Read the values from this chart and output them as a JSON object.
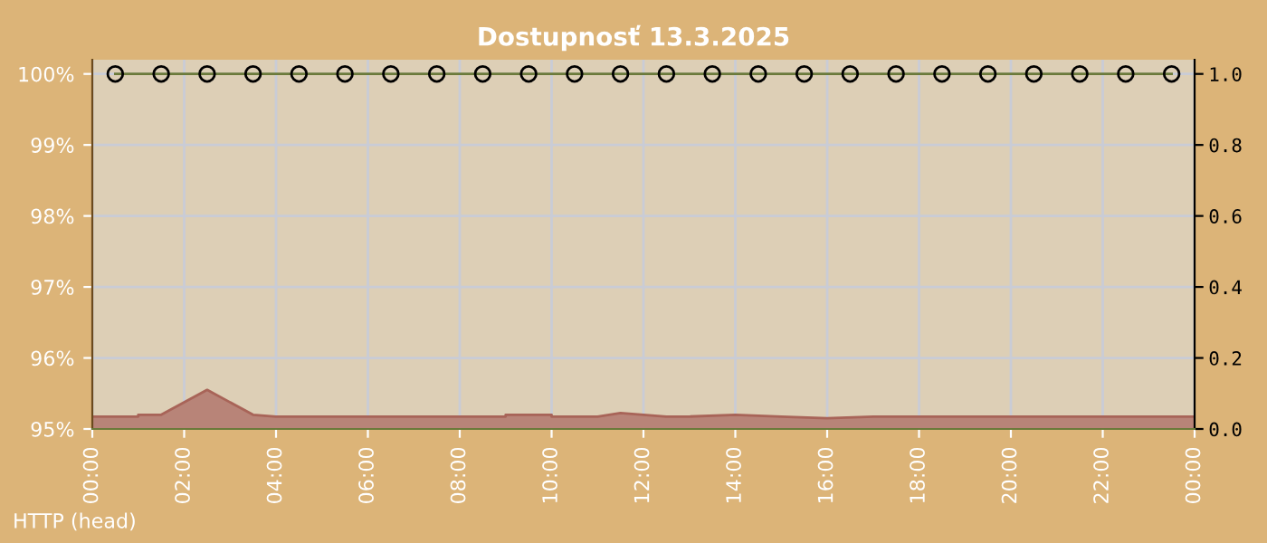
{
  "chart_data": {
    "type": "line",
    "title": "Dostupnosť 13.3.2025",
    "xlim": [
      0,
      24
    ],
    "xticks": [
      {
        "value": 0,
        "label": "00:00"
      },
      {
        "value": 2,
        "label": "02:00"
      },
      {
        "value": 4,
        "label": "04:00"
      },
      {
        "value": 6,
        "label": "06:00"
      },
      {
        "value": 8,
        "label": "08:00"
      },
      {
        "value": 10,
        "label": "10:00"
      },
      {
        "value": 12,
        "label": "12:00"
      },
      {
        "value": 14,
        "label": "14:00"
      },
      {
        "value": 16,
        "label": "16:00"
      },
      {
        "value": 18,
        "label": "18:00"
      },
      {
        "value": 20,
        "label": "20:00"
      },
      {
        "value": 22,
        "label": "22:00"
      },
      {
        "value": 24,
        "label": "00:00"
      }
    ],
    "ylim": [
      95,
      100.2
    ],
    "yticks": [
      {
        "value": 95,
        "label": "95%"
      },
      {
        "value": 96,
        "label": "96%"
      },
      {
        "value": 97,
        "label": "97%"
      },
      {
        "value": 98,
        "label": "98%"
      },
      {
        "value": 99,
        "label": "99%"
      },
      {
        "value": 100,
        "label": "100%"
      }
    ],
    "y2lim": [
      0,
      1.04
    ],
    "y2ticks": [
      {
        "value": 0,
        "label": "0.0"
      },
      {
        "value": 0.2,
        "label": "0.2"
      },
      {
        "value": 0.4,
        "label": "0.4"
      },
      {
        "value": 0.6,
        "label": "0.6"
      },
      {
        "value": 0.8,
        "label": "0.8"
      },
      {
        "value": 1,
        "label": "1.0"
      }
    ],
    "grid": true,
    "series": [
      {
        "type": "area",
        "axis": "y2",
        "color": "#b88478",
        "x": [
          0,
          1,
          1,
          1.5,
          2.5,
          3.5,
          4,
          9,
          9,
          10,
          10,
          11,
          11.5,
          12,
          12.5,
          13,
          14,
          15,
          16,
          17,
          24
        ],
        "values": [
          0.035,
          0.035,
          0.04,
          0.04,
          0.11,
          0.04,
          0.035,
          0.035,
          0.04,
          0.04,
          0.035,
          0.035,
          0.045,
          0.04,
          0.035,
          0.035,
          0.04,
          0.035,
          0.03,
          0.035,
          0.035
        ]
      },
      {
        "color": "#6b7a3a",
        "marker": "circle",
        "x": [
          0.5,
          1.5,
          2.5,
          3.5,
          4.5,
          5.5,
          6.5,
          7.5,
          8.5,
          9.5,
          10.5,
          11.5,
          12.5,
          13.5,
          14.5,
          15.5,
          16.5,
          17.5,
          18.5,
          19.5,
          20.5,
          21.5,
          22.5,
          23.5
        ],
        "values": [
          100,
          100,
          100,
          100,
          100,
          100,
          100,
          100,
          100,
          100,
          100,
          100,
          100,
          100,
          100,
          100,
          100,
          100,
          100,
          100,
          100,
          100,
          100,
          100
        ]
      }
    ],
    "annotations": [
      "HTTP (head)"
    ]
  }
}
